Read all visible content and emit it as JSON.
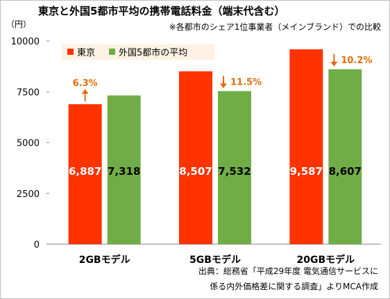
{
  "colors": {
    "tokyo": "#ff3300",
    "foreign": "#70ad47",
    "annotation": "#e46c0a",
    "legend_bg": "#fdf2e3",
    "axis": "#808080",
    "grid": "#d9d9d9"
  },
  "unit_label": "（円）",
  "source": {
    "line1": "出典：総務省「平成29年度 電気通信サービスに",
    "line2": "係る内外価格差に関する調査」よりMCA作成"
  },
  "chart_data": {
    "type": "bar",
    "title": "東京と外国5都市平均の携帯電話料金（端末代含む）",
    "subtitle": "※各都市のシェア1位事業者（メインブランド）での比較",
    "categories": [
      "2GBモデル",
      "5GBモデル",
      "20GBモデル"
    ],
    "series": [
      {
        "name": "東京",
        "values": [
          6887,
          8507,
          9587
        ],
        "labels": [
          "6,887",
          "8,507",
          "9,587"
        ]
      },
      {
        "name": "外国5都市の平均",
        "values": [
          7318,
          7532,
          8607
        ],
        "labels": [
          "7,318",
          "7,532",
          "8,607"
        ]
      }
    ],
    "y_ticks": [
      "0",
      "2500",
      "5000",
      "7500",
      "10000"
    ],
    "ylim": [
      0,
      10000
    ],
    "grid": false,
    "legend_position": "top-left",
    "annotations": [
      {
        "category": "2GBモデル",
        "text": "6.3%",
        "arrow": "up"
      },
      {
        "category": "5GBモデル",
        "text": "11.5%",
        "arrow": "down"
      },
      {
        "category": "20GBモデル",
        "text": "10.2%",
        "arrow": "down"
      }
    ]
  }
}
